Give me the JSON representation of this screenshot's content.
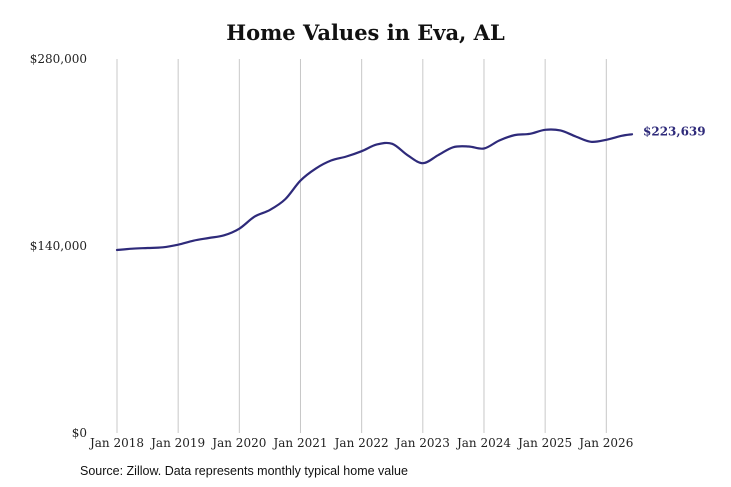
{
  "chart_data": {
    "type": "line",
    "title": "Home Values in Eva, AL",
    "xlabel": "",
    "ylabel": "",
    "ylim": [
      0,
      280000
    ],
    "y_ticks": [
      {
        "value": 0,
        "label": "$0"
      },
      {
        "value": 140000,
        "label": "$140,000"
      },
      {
        "value": 280000,
        "label": "$280,000"
      }
    ],
    "x_ticks": [
      {
        "value": 2018.0,
        "label": "Jan 2018"
      },
      {
        "value": 2019.0,
        "label": "Jan 2019"
      },
      {
        "value": 2020.0,
        "label": "Jan 2020"
      },
      {
        "value": 2021.0,
        "label": "Jan 2021"
      },
      {
        "value": 2022.0,
        "label": "Jan 2022"
      },
      {
        "value": 2023.0,
        "label": "Jan 2023"
      },
      {
        "value": 2024.0,
        "label": "Jan 2024"
      },
      {
        "value": 2025.0,
        "label": "Jan 2025"
      },
      {
        "value": 2026.0,
        "label": "Jan 2026"
      }
    ],
    "xlim": [
      2018.0,
      2026.42
    ],
    "grid": "vertical",
    "line_color": "#2e2a7a",
    "end_label": "$223,639",
    "series": [
      {
        "x": [
          2018.0,
          2018.25,
          2018.5,
          2018.75,
          2019.0,
          2019.25,
          2019.5,
          2019.75,
          2020.0,
          2020.25,
          2020.5,
          2020.75,
          2021.0,
          2021.25,
          2021.5,
          2021.75,
          2022.0,
          2022.25,
          2022.5,
          2022.75,
          2023.0,
          2023.25,
          2023.5,
          2023.75,
          2024.0,
          2024.25,
          2024.5,
          2024.75,
          2025.0,
          2025.25,
          2025.5,
          2025.75,
          2026.0,
          2026.25,
          2026.42
        ],
        "values": [
          137000,
          138000,
          138500,
          139000,
          141000,
          144000,
          146000,
          148000,
          153000,
          162000,
          167000,
          175000,
          189000,
          198000,
          204000,
          207000,
          211000,
          216000,
          216500,
          208000,
          202000,
          208000,
          214000,
          214500,
          213000,
          219000,
          223000,
          224000,
          227000,
          226500,
          222000,
          218000,
          219500,
          222500,
          223639
        ]
      }
    ]
  },
  "source": "Source: Zillow. Data represents monthly typical home value"
}
